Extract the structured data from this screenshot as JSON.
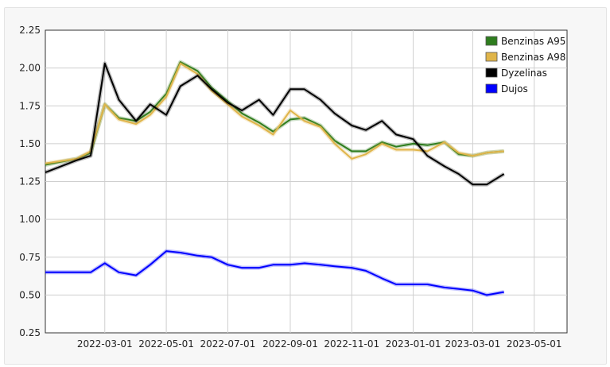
{
  "chart_data": {
    "type": "line",
    "x": [
      "2022-01-01",
      "2022-02-01",
      "2022-02-15",
      "2022-03-01",
      "2022-03-15",
      "2022-04-01",
      "2022-04-15",
      "2022-05-01",
      "2022-05-15",
      "2022-06-01",
      "2022-06-15",
      "2022-07-01",
      "2022-07-15",
      "2022-08-01",
      "2022-08-15",
      "2022-09-01",
      "2022-09-15",
      "2022-10-01",
      "2022-10-15",
      "2022-11-01",
      "2022-11-15",
      "2022-12-01",
      "2022-12-15",
      "2023-01-01",
      "2023-01-15",
      "2023-02-01",
      "2023-02-15",
      "2023-03-01",
      "2023-03-15",
      "2023-04-01",
      "2023-04-15",
      "2023-05-01",
      "2023-05-15",
      "2023-06-01",
      "2023-06-15"
    ],
    "ylim": [
      0.25,
      2.25
    ],
    "yticks": [
      "0.25",
      "0.50",
      "0.75",
      "1.00",
      "1.25",
      "1.50",
      "1.75",
      "2.00",
      "2.25"
    ],
    "xticks": [
      "2022-03-01",
      "2022-05-01",
      "2022-07-01",
      "2022-09-01",
      "2022-11-01",
      "2023-01-01",
      "2023-03-01",
      "2023-05-01"
    ],
    "grid": true,
    "legend_position": "top-right",
    "series": [
      {
        "name": "Benzinas A95",
        "color": "#2e7d1e",
        "values": [
          1.36,
          1.4,
          1.44,
          1.76,
          1.67,
          1.65,
          1.71,
          1.83,
          2.04,
          1.98,
          1.87,
          1.78,
          1.7,
          1.64,
          1.58,
          1.66,
          1.67,
          1.62,
          1.52,
          1.45,
          1.45,
          1.51,
          1.48,
          1.5,
          1.49,
          1.51,
          1.43,
          1.42,
          1.44,
          1.45,
          null,
          null,
          null,
          null,
          null
        ]
      },
      {
        "name": "Benzinas A98",
        "color": "#e0b54a",
        "values": [
          1.37,
          1.4,
          1.45,
          1.76,
          1.66,
          1.63,
          1.69,
          1.81,
          2.03,
          1.96,
          1.85,
          1.76,
          1.68,
          1.62,
          1.56,
          1.72,
          1.65,
          1.61,
          1.5,
          1.4,
          1.43,
          1.5,
          1.46,
          1.46,
          1.45,
          1.51,
          1.44,
          1.42,
          1.44,
          1.45,
          null,
          null,
          null,
          null,
          null
        ]
      },
      {
        "name": "Dyzelinas",
        "color": "#000000",
        "values": [
          1.31,
          1.39,
          1.42,
          2.03,
          1.79,
          1.65,
          1.76,
          1.69,
          1.88,
          1.95,
          1.86,
          1.77,
          1.72,
          1.79,
          1.69,
          1.86,
          1.86,
          1.79,
          1.7,
          1.62,
          1.59,
          1.65,
          1.56,
          1.53,
          1.42,
          1.35,
          1.3,
          1.23,
          1.23,
          1.3,
          null,
          null,
          null,
          null,
          null
        ]
      },
      {
        "name": "Dujos",
        "color": "#0000ff",
        "values": [
          0.65,
          0.65,
          0.65,
          0.71,
          0.65,
          0.63,
          0.7,
          0.79,
          0.78,
          0.76,
          0.75,
          0.7,
          0.68,
          0.68,
          0.7,
          0.7,
          0.71,
          0.7,
          0.69,
          0.68,
          0.66,
          0.61,
          0.57,
          0.57,
          0.57,
          0.55,
          0.54,
          0.53,
          0.5,
          0.52,
          null,
          null,
          null,
          null,
          null
        ]
      }
    ]
  }
}
